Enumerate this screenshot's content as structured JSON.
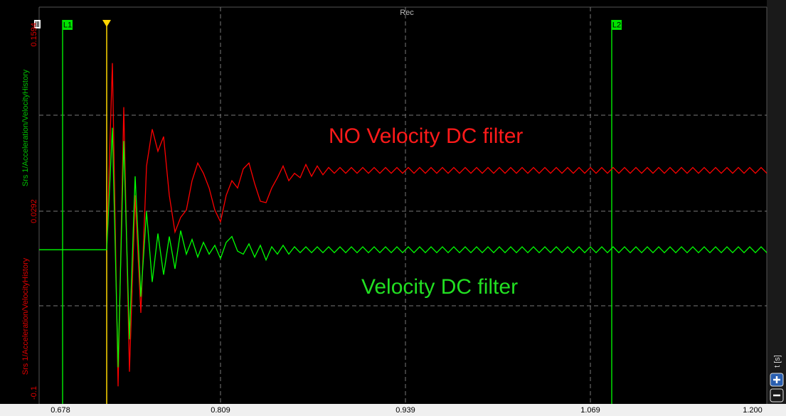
{
  "chart_data": {
    "type": "line",
    "title": "Rec",
    "x_label": "t [s]",
    "y_axis_titles": [
      {
        "text": "Srs 1/Acceleration/VelocityHistory",
        "color": "#00c000"
      },
      {
        "text": "Srs 1/Acceleration/VelocityHistory",
        "color": "#e00000"
      }
    ],
    "annotations": [
      {
        "text": "NO Velocity DC filter",
        "color": "#ff1a1a"
      },
      {
        "text": "Velocity DC filter",
        "color": "#22e022"
      }
    ],
    "xlim": [
      0.678,
      1.2
    ],
    "xticks": [
      0.678,
      0.809,
      0.939,
      1.069,
      {
        "value": 1.2,
        "label": "1.200"
      }
    ],
    "ylim": [
      -0.1,
      0.1594
    ],
    "yticks": [
      -0.1,
      0.0292,
      0.1594
    ],
    "ytick_color": "#e00000",
    "grid": true,
    "cursors": [
      {
        "label": "L1",
        "x": 0.698,
        "color": "#00e000"
      },
      {
        "label": "L2",
        "x": 1.084,
        "color": "#00e000"
      }
    ],
    "trigger": {
      "x": 0.729,
      "color": "#ffd700"
    },
    "x": [
      0.678,
      0.729,
      0.733,
      0.737,
      0.741,
      0.745,
      0.749,
      0.753,
      0.757,
      0.761,
      0.765,
      0.769,
      0.773,
      0.777,
      0.781,
      0.785,
      0.789,
      0.793,
      0.797,
      0.801,
      0.805,
      0.809,
      0.813,
      0.817,
      0.821,
      0.825,
      0.829,
      0.833,
      0.837,
      0.841,
      0.845,
      0.849,
      0.853,
      0.857,
      0.861,
      0.865,
      0.869,
      0.873,
      0.877,
      0.881,
      0.885,
      0.889,
      0.893,
      0.897,
      0.901,
      0.905,
      0.909,
      0.913,
      0.917,
      0.921,
      0.925,
      0.929,
      0.933,
      0.937,
      0.941,
      0.945,
      0.949,
      0.953,
      0.957,
      0.961,
      0.965,
      0.969,
      0.973,
      0.977,
      0.981,
      0.985,
      0.989,
      0.993,
      0.997,
      1.001,
      1.005,
      1.009,
      1.013,
      1.017,
      1.021,
      1.025,
      1.029,
      1.033,
      1.037,
      1.041,
      1.045,
      1.049,
      1.053,
      1.057,
      1.061,
      1.065,
      1.069,
      1.073,
      1.077,
      1.081,
      1.085,
      1.089,
      1.093,
      1.097,
      1.101,
      1.105,
      1.109,
      1.113,
      1.117,
      1.121,
      1.125,
      1.129,
      1.133,
      1.137,
      1.141,
      1.145,
      1.149,
      1.153,
      1.157,
      1.161,
      1.165,
      1.169,
      1.173,
      1.177,
      1.181,
      1.185,
      1.189,
      1.193,
      1.197,
      1.2
    ],
    "series": [
      {
        "color": "#ff0000",
        "values": [
          null,
          0.003,
          0.13,
          -0.09,
          0.1,
          -0.08,
          0.04,
          -0.04,
          0.06,
          0.085,
          0.07,
          0.08,
          0.04,
          0.015,
          0.025,
          0.03,
          0.05,
          0.062,
          0.055,
          0.045,
          0.03,
          0.022,
          0.04,
          0.05,
          0.045,
          0.058,
          0.062,
          0.048,
          0.036,
          0.035,
          0.045,
          0.052,
          0.06,
          0.05,
          0.055,
          0.052,
          0.061,
          0.053,
          0.06,
          0.054,
          0.059,
          0.055,
          0.059,
          0.055,
          0.059,
          0.055,
          0.059,
          0.055,
          0.059,
          0.055,
          0.059,
          0.055,
          0.059,
          0.055,
          0.059,
          0.055,
          0.059,
          0.055,
          0.059,
          0.055,
          0.059,
          0.055,
          0.059,
          0.055,
          0.059,
          0.055,
          0.059,
          0.055,
          0.059,
          0.055,
          0.059,
          0.055,
          0.059,
          0.055,
          0.059,
          0.055,
          0.059,
          0.055,
          0.059,
          0.055,
          0.059,
          0.055,
          0.059,
          0.055,
          0.059,
          0.055,
          0.059,
          0.055,
          0.059,
          0.055,
          0.059,
          0.055,
          0.059,
          0.055,
          0.059,
          0.055,
          0.059,
          0.055,
          0.059,
          0.055,
          0.059,
          0.055,
          0.059,
          0.055,
          0.059,
          0.055,
          0.059,
          0.055,
          0.059,
          0.055,
          0.059,
          0.055,
          0.059,
          0.055,
          0.059,
          0.055,
          0.059,
          0.055,
          0.059,
          0.057
        ]
      },
      {
        "color": "#00ff00",
        "values": [
          0.003,
          0.003,
          0.086,
          -0.077,
          0.077,
          -0.058,
          0.053,
          -0.029,
          0.029,
          -0.019,
          0.014,
          -0.014,
          0.012,
          -0.01,
          0.016,
          0.0,
          0.01,
          -0.002,
          0.008,
          0.0,
          0.006,
          -0.003,
          0.008,
          0.012,
          0.002,
          0.0,
          0.007,
          -0.002,
          0.006,
          -0.004,
          0.005,
          0.0,
          0.006,
          0.0,
          0.005,
          0.001,
          0.005,
          0.001,
          0.005,
          0.001,
          0.005,
          0.001,
          0.005,
          0.001,
          0.005,
          0.001,
          0.005,
          0.001,
          0.005,
          0.001,
          0.005,
          0.001,
          0.005,
          0.001,
          0.005,
          0.001,
          0.005,
          0.001,
          0.005,
          0.001,
          0.005,
          0.001,
          0.005,
          0.001,
          0.005,
          0.001,
          0.005,
          0.001,
          0.005,
          0.001,
          0.005,
          0.001,
          0.005,
          0.001,
          0.005,
          0.001,
          0.005,
          0.001,
          0.005,
          0.001,
          0.005,
          0.001,
          0.005,
          0.001,
          0.005,
          0.001,
          0.005,
          0.001,
          0.005,
          0.001,
          0.005,
          0.001,
          0.005,
          0.001,
          0.005,
          0.001,
          0.005,
          0.001,
          0.005,
          0.001,
          0.005,
          0.001,
          0.005,
          0.001,
          0.005,
          0.001,
          0.005,
          0.001,
          0.005,
          0.001,
          0.005,
          0.001,
          0.005,
          0.001,
          0.005,
          0.001,
          0.005,
          0.001,
          0.005,
          0.003
        ]
      }
    ]
  }
}
